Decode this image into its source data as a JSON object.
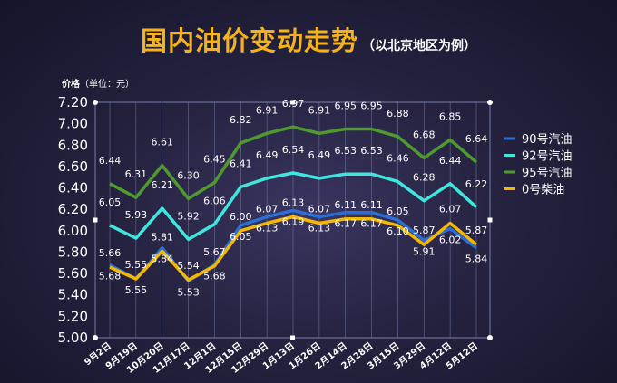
{
  "header": {
    "title": "国内油价变动走势",
    "subtitle": "（以北京地区为例）",
    "unit_label_bold": "价格",
    "unit_label_rest": "（单位：元）"
  },
  "chart_data": {
    "type": "line",
    "title": "国内油价变动走势",
    "subtitle": "（以北京地区为例）",
    "ylabel": "价格（单位：元）",
    "xlabel": "",
    "ylim": [
      5.0,
      7.2
    ],
    "yticks": [
      "7.20",
      "7.00",
      "6.80",
      "6.60",
      "6.40",
      "6.20",
      "6.00",
      "5.80",
      "5.60",
      "5.40",
      "5.20",
      "5.00"
    ],
    "grid": "vertical",
    "legend_position": "right",
    "categories": [
      "9月2日",
      "9月19日",
      "10月20日",
      "11月17日",
      "12月1日",
      "12月15日",
      "12月29日",
      "1月13日",
      "1月26日",
      "2月14日",
      "2月28日",
      "3月15日",
      "3月29日",
      "4月12日",
      "5月12日"
    ],
    "series": [
      {
        "name": "90号汽油",
        "color": "#2b6fd6",
        "values": [
          5.68,
          5.55,
          5.84,
          5.53,
          5.68,
          6.05,
          6.13,
          6.19,
          6.13,
          6.17,
          6.17,
          6.1,
          5.91,
          6.02,
          5.84
        ],
        "labels": [
          "5.68",
          "5.55",
          "5.84",
          "5.53",
          "5.68",
          "6.05",
          "6.13",
          "6.19",
          "6.13",
          "6.17",
          "6.17",
          "6.10",
          "5.91",
          "6.02",
          "5.84"
        ]
      },
      {
        "name": "92号汽油",
        "color": "#3fe6dc",
        "values": [
          6.05,
          5.93,
          6.21,
          5.92,
          6.06,
          6.41,
          6.49,
          6.54,
          6.49,
          6.53,
          6.53,
          6.46,
          6.28,
          6.44,
          6.22
        ],
        "labels": [
          "6.05",
          "5.93",
          "6.21",
          "5.92",
          "6.06",
          "6.41",
          "6.49",
          "6.54",
          "6.49",
          "6.53",
          "6.53",
          "6.46",
          "6.28",
          "6.44",
          "6.22"
        ]
      },
      {
        "name": "95号汽油",
        "color": "#4f9a2e",
        "values": [
          6.44,
          6.31,
          6.61,
          6.3,
          6.45,
          6.82,
          6.91,
          6.97,
          6.91,
          6.95,
          6.95,
          6.88,
          6.68,
          6.85,
          6.64
        ],
        "labels": [
          "6.44",
          "6.31",
          "6.61",
          "6.30",
          "6.45",
          "6.82",
          "6.91",
          "6.97",
          "6.91",
          "6.95",
          "6.95",
          "6.88",
          "6.68",
          "6.85",
          "6.64"
        ]
      },
      {
        "name": "0号柴油",
        "color": "#f5b800",
        "values": [
          5.66,
          5.55,
          5.81,
          5.54,
          5.67,
          6.0,
          6.07,
          6.13,
          6.07,
          6.11,
          6.11,
          6.05,
          5.87,
          6.07,
          5.87
        ],
        "labels": [
          "5.66",
          "5.55",
          "5.81",
          "5.54",
          "5.67",
          "6.00",
          "6.07",
          "6.13",
          "6.07",
          "6.11",
          "6.11",
          "6.05",
          "5.87",
          "6.07",
          "5.87"
        ]
      }
    ]
  }
}
